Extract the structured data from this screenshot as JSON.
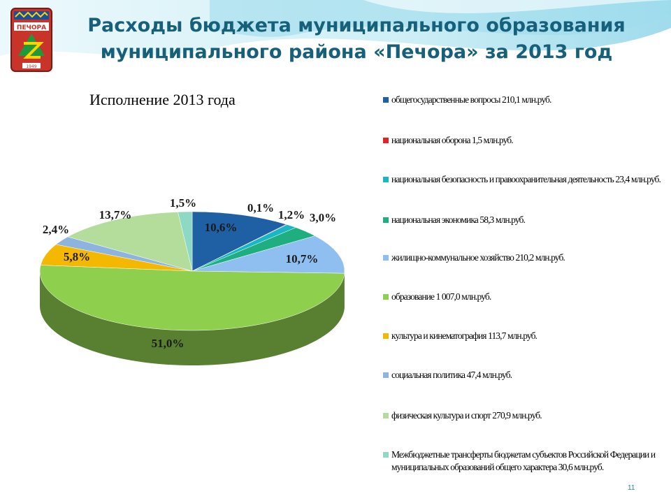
{
  "slide": {
    "title_line1": "Расходы бюджета муниципального образования",
    "title_line2": "муниципального района «Печора» за 2013 год",
    "page_number": "11"
  },
  "logo": {
    "name": "Печора coat of arms",
    "text": "ПЕЧОРА",
    "year": "1949"
  },
  "chart_data": {
    "type": "pie",
    "title": "Исполнение 2013 года",
    "style": "3d-exploded-none",
    "legend_position": "right",
    "slices": [
      {
        "label": "общегосударственные вопросы 210,1 млн.руб.",
        "value": 10.6,
        "data_label": "10,6%",
        "color": "#1f5fa3"
      },
      {
        "label": "национальная оборона 1,5 млн.руб.",
        "value": 0.1,
        "data_label": "0,1%",
        "color": "#e02424"
      },
      {
        "label": "национальная безопасность и правоохранительная деятельность 23,4 млн.руб.",
        "value": 1.2,
        "data_label": "1,2%",
        "color": "#19b6c5"
      },
      {
        "label": "национальная экономика 58,3  млн.руб.",
        "value": 3.0,
        "data_label": "3,0%",
        "color": "#1fae7f"
      },
      {
        "label": "жилищно-коммунальное хозяйство 210,2 млн.руб.",
        "value": 10.7,
        "data_label": "10,7%",
        "color": "#8fbff0"
      },
      {
        "label": "образование 1 007,0 млн.руб.",
        "value": 51.0,
        "data_label": "51,0%",
        "color": "#8ecf4e"
      },
      {
        "label": "культура и кинематография 113,7 млн.руб.",
        "value": 5.8,
        "data_label": "5,8%",
        "color": "#f5b800"
      },
      {
        "label": "социальная политика 47,4 млн.руб.",
        "value": 2.4,
        "data_label": "2,4%",
        "color": "#8cb4de"
      },
      {
        "label": "физическая культура и спорт 270,9 млн.руб.",
        "value": 13.7,
        "data_label": "13,7%",
        "color": "#b4dc9a"
      },
      {
        "label": "Межбюджетные трансферты бюджетам субъектов Российской Федерации и муниципальных  образований общего характера 30,6 млн.руб.",
        "value": 1.5,
        "data_label": "1,5%",
        "color": "#8dd9c4"
      }
    ]
  }
}
